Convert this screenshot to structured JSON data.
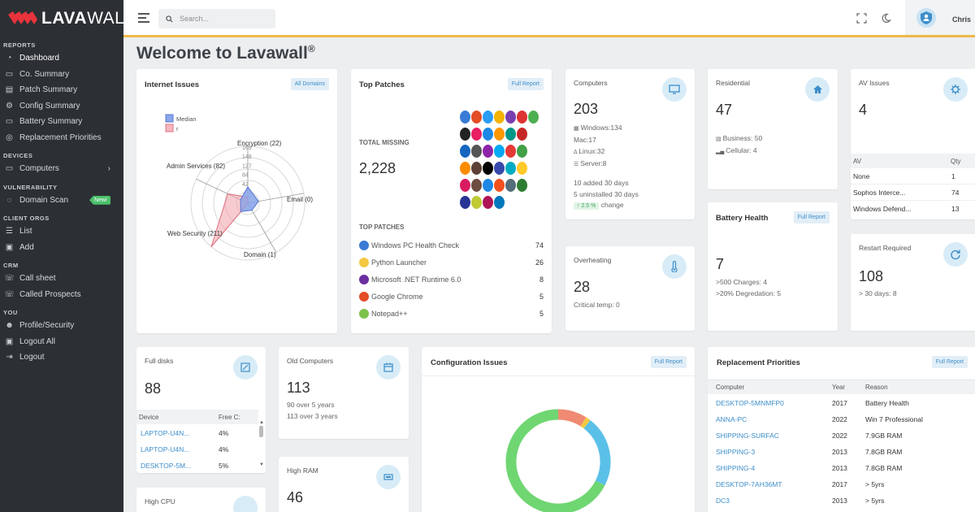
{
  "brand": {
    "name_bold": "LAVA",
    "name_thin": "WALL",
    "mark": "®"
  },
  "sidebar": {
    "sections": [
      {
        "title": "REPORTS",
        "items": [
          {
            "label": "Dashboard",
            "icon": "dashboard-icon"
          },
          {
            "label": "Co. Summary",
            "icon": "folder-icon"
          },
          {
            "label": "Patch Summary",
            "icon": "document-icon"
          },
          {
            "label": "Config Summary",
            "icon": "gear-icon"
          },
          {
            "label": "Battery Summary",
            "icon": "battery-icon"
          },
          {
            "label": "Replacement Priorities",
            "icon": "target-icon"
          }
        ]
      },
      {
        "title": "DEVICES",
        "items": [
          {
            "label": "Computers",
            "icon": "monitor-icon"
          }
        ]
      },
      {
        "title": "VULNERABILITY",
        "items": [
          {
            "label": "Domain Scan",
            "icon": "search-icon",
            "badge": "New!"
          }
        ]
      },
      {
        "title": "CLIENT ORGS",
        "items": [
          {
            "label": "List",
            "icon": "list-icon"
          },
          {
            "label": "Add",
            "icon": "add-icon"
          }
        ]
      },
      {
        "title": "CRM",
        "items": [
          {
            "label": "Call sheet",
            "icon": "phone-icon"
          },
          {
            "label": "Called Prospects",
            "icon": "phone-list-icon"
          }
        ]
      },
      {
        "title": "YOU",
        "items": [
          {
            "label": "Profile/Security",
            "icon": "user-icon"
          },
          {
            "label": "Logout All",
            "icon": "lock-icon"
          },
          {
            "label": "Logout",
            "icon": "logout-icon"
          }
        ]
      }
    ]
  },
  "topbar": {
    "search_placeholder": "Search...",
    "user": "Chris"
  },
  "page_title": "Welcome to Lavawall",
  "page_title_mark": "®",
  "internet_issues": {
    "title": "Internet Issues",
    "button": "All Domains",
    "legend": [
      "Median",
      "r"
    ],
    "ticks": [
      "169",
      "148",
      "127",
      "84",
      "42"
    ],
    "axes": [
      "Encryption (22)",
      "Admin Services (82)",
      "Email (0)",
      "Web Security (211)",
      "Domain (1)"
    ]
  },
  "chart_data": {
    "type": "radar",
    "categories": [
      "Encryption",
      "Email",
      "Domain",
      "Web Security",
      "Admin Services"
    ],
    "series": [
      {
        "name": "Median",
        "values": [
          60,
          40,
          30,
          40,
          30
        ]
      },
      {
        "name": "r",
        "values": [
          22,
          0,
          1,
          211,
          82
        ]
      }
    ],
    "ticks": [
      42,
      84,
      127,
      148,
      169
    ],
    "colors": [
      "#8aa6e8",
      "#f0a0a8"
    ]
  },
  "top_patches": {
    "title": "Top Patches",
    "button": "Full Report",
    "total_label": "TOTAL MISSING",
    "total": "2,228",
    "list_label": "TOP PATCHES",
    "items": [
      {
        "name": "Windows PC Health Check",
        "count": "74"
      },
      {
        "name": "Python Launcher",
        "count": "26"
      },
      {
        "name": "Microsoft .NET Runtime 6.0",
        "count": "8"
      },
      {
        "name": "Google Chrome",
        "count": "5"
      },
      {
        "name": "Notepad++",
        "count": "5"
      }
    ],
    "logo_colors": [
      "#3a7bd5",
      "#e44d26",
      "#2a9df4",
      "#f4b400",
      "#7a3fb0",
      "#d33",
      "#4caf50",
      "#222",
      "#e91e63",
      "#1e88e5",
      "#ff9800",
      "#009688",
      "#c62828",
      "#1565c0",
      "#555",
      "#8e24aa",
      "#03a9f4",
      "#e53935",
      "#43a047",
      "#fb8c00",
      "#5d4037",
      "#000",
      "#3949ab",
      "#00acc1",
      "#ffca28",
      "#d81b60",
      "#6d4c41",
      "#1e88e5",
      "#f4511e",
      "#546e7a",
      "#2e7d32",
      "#283593",
      "#c0ca33",
      "#ad1457",
      "#0277bd",
      "#ef6c00"
    ]
  },
  "computers": {
    "title": "Computers",
    "total": "203",
    "breakdown": [
      "Windows:134",
      "Mac:17",
      "Linux:32",
      "Server:8"
    ],
    "added": "10 added 30 days",
    "uninstalled": "5 uninstalled 30 days",
    "change_badge": "↑ 2.5 %",
    "change_label": "change"
  },
  "residential": {
    "title": "Residential",
    "total": "47",
    "lines": [
      "Business: 50",
      "Cellular: 4"
    ]
  },
  "av_issues": {
    "title": "AV Issues",
    "total": "4",
    "headers": [
      "AV",
      "Qty"
    ],
    "rows": [
      {
        "name": "None",
        "qty": "1"
      },
      {
        "name": "Sophos Interce...",
        "qty": "74"
      },
      {
        "name": "Windows Defend...",
        "qty": "13"
      }
    ]
  },
  "battery_health": {
    "title": "Battery Health",
    "button": "Full Report",
    "total": "7",
    "lines": [
      ">500 Charges: 4",
      ">20% Degredation: 5"
    ]
  },
  "overheating": {
    "title": "Overheating",
    "total": "28",
    "line": "Critical temp: 0"
  },
  "restart_required": {
    "title": "Restart Required",
    "total": "108",
    "line": "> 30 days: 8"
  },
  "full_disks": {
    "title": "Full disks",
    "total": "88",
    "headers": [
      "Device",
      "Free C:"
    ],
    "rows": [
      {
        "device": "LAPTOP-U4N...",
        "free": "4%"
      },
      {
        "device": "LAPTOP-U4N...",
        "free": "4%"
      },
      {
        "device": "DESKTOP-5M...",
        "free": "5%"
      }
    ]
  },
  "old_computers": {
    "title": "Old Computers",
    "total": "113",
    "lines": [
      "90 over 5 years",
      "113 over 3 years"
    ]
  },
  "high_ram": {
    "title": "High RAM",
    "total": "46"
  },
  "high_cpu": {
    "title": "High CPU"
  },
  "config_issues": {
    "title": "Configuration Issues",
    "button": "Full Report",
    "donut": [
      {
        "value": 0.09,
        "color": "#f08a72"
      },
      {
        "value": 0.015,
        "color": "#f4c842"
      },
      {
        "value": 0.22,
        "color": "#5bc0e8"
      },
      {
        "value": 0.675,
        "color": "#6fd672"
      }
    ]
  },
  "replacement": {
    "title": "Replacement Priorities",
    "button": "Full Report",
    "headers": [
      "Computer",
      "Year",
      "Reason"
    ],
    "rows": [
      {
        "computer": "DESKTOP-5MNMFP0",
        "year": "2017",
        "reason": "Battery Health"
      },
      {
        "computer": "ANNA-PC",
        "year": "2022",
        "reason": "Win 7 Professional"
      },
      {
        "computer": "SHIPPING-SURFAC",
        "year": "2022",
        "reason": "7.9GB RAM"
      },
      {
        "computer": "SHIPPING-3",
        "year": "2013",
        "reason": "7.8GB RAM"
      },
      {
        "computer": "SHIPPING-4",
        "year": "2013",
        "reason": "7.8GB RAM"
      },
      {
        "computer": "DESKTOP-7AH36MT",
        "year": "2017",
        "reason": "> 5yrs"
      },
      {
        "computer": "DC3",
        "year": "2013",
        "reason": "> 5yrs"
      }
    ]
  },
  "colors": {
    "accent": "#3d8ec9",
    "topbar_border": "#f0b849",
    "sidebar": "#2c3034",
    "badge_new": "#4bc06a"
  }
}
